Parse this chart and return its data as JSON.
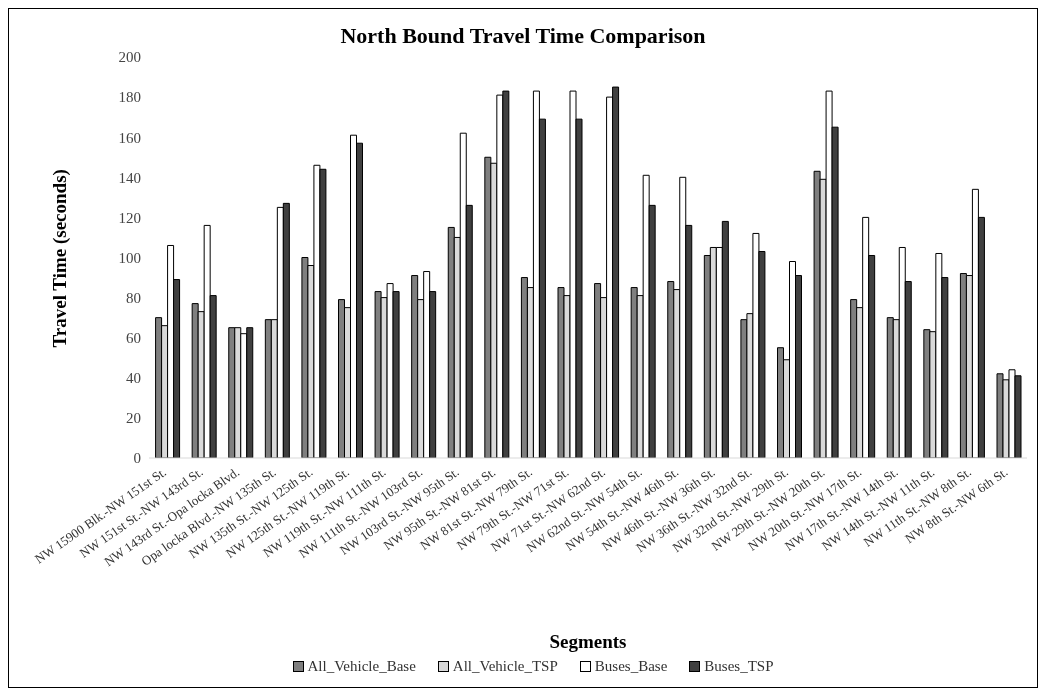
{
  "chart_data": {
    "type": "bar",
    "title": "North Bound Travel Time Comparison",
    "xlabel": "Segments",
    "ylabel": "Travel Time (seconds)",
    "categories": [
      "NW 15900 Blk.-NW 151st St.",
      "NW 151st St.-NW 143rd St.",
      "NW 143rd St.-Opa locka Blvd.",
      "Opa locka Blvd.-NW 135th St.",
      "NW 135th St.-NW 125th St.",
      "NW 125th St.-NW 119th St.",
      "NW 119th St.-NW 111th St.",
      "NW 111th St.-NW 103rd St.",
      "NW 103rd St.-NW 95th St.",
      "NW 95th St.-NW 81st St.",
      "NW 81st St.-NW 79th St.",
      "NW 79th St.-NW 71st St.",
      "NW 71st St.-NW 62nd St.",
      "NW 62nd St.-NW 54th St.",
      "NW 54th St.-NW 46th St.",
      "NW 46th St.-NW 36th St.",
      "NW 36th St.-NW 32nd St.",
      "NW 32nd St.-NW 29th St.",
      "NW 29th St.-NW 20th St.",
      "NW 20th St.-NW 17th St.",
      "NW 17th St.-NW 14th St.",
      "NW 14th St.-NW 11th St.",
      "NW 11th St.-NW 8th St.",
      "NW 8th St.-NW 6th St."
    ],
    "series": [
      {
        "name": "All_Vehicle_Base",
        "color": "#7f7f7f",
        "values": [
          70,
          77,
          65,
          69,
          100,
          79,
          83,
          91,
          115,
          150,
          90,
          85,
          87,
          85,
          88,
          101,
          69,
          55,
          143,
          79,
          70,
          64,
          92,
          42
        ]
      },
      {
        "name": "All_Vehicle_TSP",
        "color": "#d9d9d9",
        "values": [
          66,
          73,
          65,
          69,
          96,
          75,
          80,
          79,
          110,
          147,
          85,
          81,
          80,
          81,
          84,
          105,
          72,
          49,
          139,
          75,
          69,
          63,
          91,
          39
        ]
      },
      {
        "name": "Buses_Base",
        "color": "#ffffff",
        "values": [
          106,
          116,
          62,
          125,
          146,
          161,
          87,
          93,
          162,
          181,
          183,
          183,
          180,
          141,
          140,
          105,
          112,
          98,
          183,
          120,
          105,
          102,
          134,
          44
        ]
      },
      {
        "name": "Buses_TSP",
        "color": "#404040",
        "values": [
          89,
          81,
          65,
          127,
          144,
          157,
          83,
          83,
          126,
          183,
          169,
          169,
          185,
          126,
          116,
          118,
          103,
          91,
          165,
          101,
          88,
          90,
          120,
          41
        ]
      }
    ],
    "ylim": [
      0,
      200
    ],
    "yticks": [
      0,
      20,
      40,
      60,
      80,
      100,
      120,
      140,
      160,
      180,
      200
    ],
    "grid": false,
    "legend": "bottom"
  }
}
